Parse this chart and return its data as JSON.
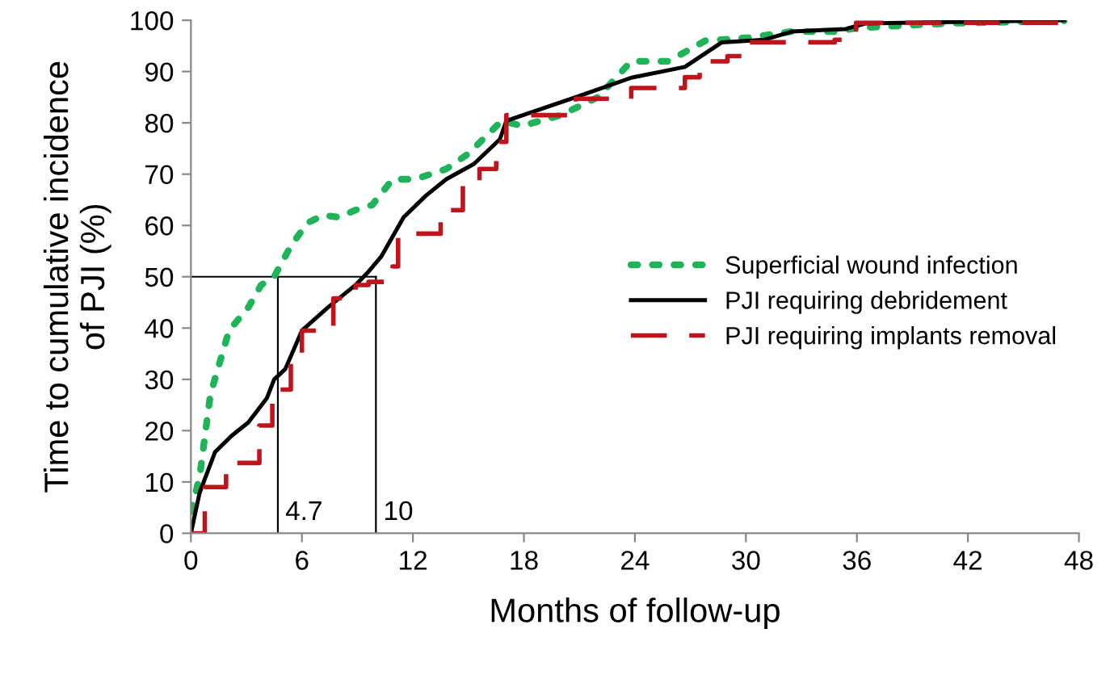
{
  "chart_data": {
    "type": "line",
    "xlabel": "Months of follow-up",
    "ylabel": "Time to cumulative incidence\nof PJI (%)",
    "xlim": [
      0,
      48
    ],
    "ylim": [
      0,
      100
    ],
    "xticks": [
      0,
      6,
      12,
      18,
      24,
      30,
      36,
      42,
      48
    ],
    "yticks": [
      0,
      10,
      20,
      30,
      40,
      50,
      60,
      70,
      80,
      90,
      100
    ],
    "grid": false,
    "legend": "right",
    "series": [
      {
        "name": "Superficial wound infection",
        "color": "#1fb35a",
        "line_style": "dotted",
        "x": [
          0,
          0.47,
          1.05,
          2.06,
          3.1,
          3.8,
          4.5,
          5.4,
          6.3,
          7.15,
          8,
          8.9,
          9.8,
          10.9,
          12.1,
          13.8,
          15,
          16.8,
          17.9,
          20,
          22,
          23.8,
          25.8,
          27.8,
          30.1,
          32.5,
          35,
          35.95,
          41,
          47.2
        ],
        "values": [
          4.2,
          11,
          27,
          39.5,
          44,
          48.4,
          50,
          56,
          60.5,
          62,
          61.6,
          63,
          64,
          69,
          69,
          71,
          74,
          80.4,
          79.4,
          81.5,
          85,
          92,
          92,
          96,
          96.6,
          97.8,
          97.8,
          98.5,
          99.4,
          99.9
        ]
      },
      {
        "name": "PJI requiring debridement",
        "color": "#000000",
        "line_style": "solid",
        "x": [
          0,
          0.47,
          1.3,
          2.2,
          3.1,
          4.1,
          4.5,
          5.1,
          6,
          7.4,
          8.9,
          9.6,
          10.3,
          11.5,
          12.7,
          13.8,
          15.3,
          16.7,
          17.05,
          20.8,
          23.8,
          26.7,
          28.7,
          31,
          32.5,
          35.4,
          36.5,
          47.2
        ],
        "values": [
          0,
          7.9,
          15.8,
          19,
          21.6,
          26.3,
          30,
          32,
          39.5,
          44,
          48.4,
          51,
          54,
          61.6,
          65.8,
          69,
          72,
          76.8,
          80.4,
          85,
          88.8,
          90.9,
          95.7,
          96.2,
          97.8,
          98.3,
          99.4,
          100
        ]
      },
      {
        "name": "PJI requiring implants removal",
        "type": "step",
        "color": "#c0141c",
        "line_style": "dashed",
        "x": [
          0,
          0.75,
          1.9,
          3.7,
          4.4,
          5.4,
          6,
          7.7,
          8.9,
          9.6,
          10.9,
          11.2,
          13.5,
          14.7,
          15.6,
          16.5,
          17.05,
          20.8,
          23.8,
          26.7,
          27.5,
          29,
          30.1,
          34.8,
          35.95,
          47.2
        ],
        "values": [
          0,
          9,
          13.7,
          21,
          28,
          34,
          39.5,
          45.8,
          48.4,
          49,
          52,
          58.4,
          63,
          68,
          71,
          76.3,
          81.5,
          84.7,
          86.8,
          88.9,
          92,
          93,
          95.7,
          96.2,
          99.5,
          99.9
        ]
      }
    ],
    "ref_lines": [
      {
        "axis": "y",
        "value": 50,
        "color": "#000000"
      },
      {
        "axis": "x",
        "value": 4.7,
        "label": "4.7",
        "color": "#000000"
      },
      {
        "axis": "x",
        "value": 10,
        "label": "10",
        "color": "#000000"
      }
    ]
  }
}
